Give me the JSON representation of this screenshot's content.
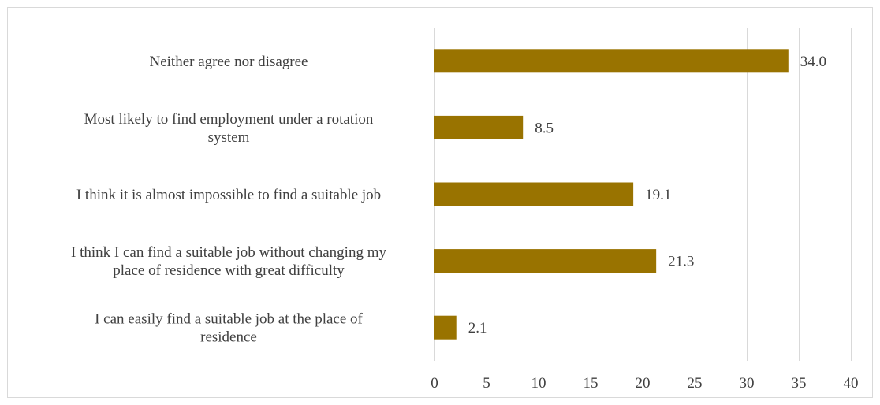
{
  "chart_data": {
    "type": "bar",
    "orientation": "horizontal",
    "categories": [
      [
        "Neither agree nor disagree"
      ],
      [
        "Most likely to find employment under a rotation",
        "system"
      ],
      [
        "I think it is almost impossible to find a suitable job"
      ],
      [
        "I think I can find a suitable job without changing my",
        "place of residence with great difficulty"
      ],
      [
        "I can easily find a suitable job at the place of",
        "residence"
      ]
    ],
    "values": [
      34.0,
      8.5,
      19.1,
      21.3,
      2.1
    ],
    "value_labels": [
      "34.0",
      "8.5",
      "19.1",
      "21.3",
      "2.1"
    ],
    "xlim": [
      0,
      40
    ],
    "xticks": [
      0,
      5,
      10,
      15,
      20,
      25,
      30,
      35,
      40
    ],
    "grid": true,
    "legend": "none",
    "bar_color": "#997300",
    "title": "",
    "xlabel": "",
    "ylabel": ""
  }
}
